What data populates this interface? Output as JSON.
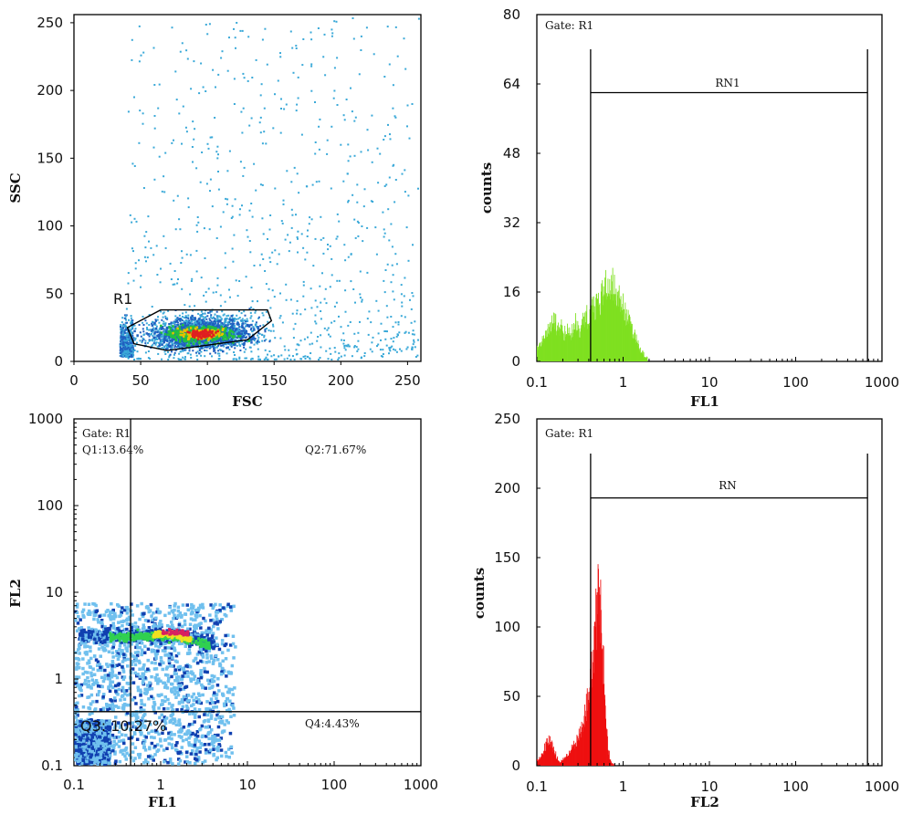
{
  "chart_data": [
    {
      "type": "scatter",
      "id": "fsc-ssc",
      "xlabel": "FSC",
      "ylabel": "SSC",
      "xlim": [
        0,
        260
      ],
      "ylim": [
        0,
        256
      ],
      "xticks": [
        0,
        50,
        100,
        150,
        200,
        250
      ],
      "yticks": [
        0,
        50,
        100,
        150,
        200,
        250
      ],
      "gate": {
        "name": "R1",
        "polygon": [
          [
            45,
            13
          ],
          [
            40,
            25
          ],
          [
            65,
            38
          ],
          [
            145,
            38
          ],
          [
            148,
            30
          ],
          [
            130,
            16
          ],
          [
            70,
            8
          ]
        ]
      },
      "colors": {
        "sparse": "#3aa9d8",
        "medium": "#2060c0",
        "dense": "#22c040",
        "core": "#e8c000",
        "hot": "#e02020"
      }
    },
    {
      "type": "histogram",
      "id": "fl1-hist",
      "gate_label": "Gate: R1",
      "xlabel": "FL1",
      "ylabel": "counts",
      "xscale": "log",
      "xlim": [
        0.1,
        1000
      ],
      "ylim": [
        0,
        80
      ],
      "xticks": [
        "0.1",
        "1",
        "10",
        "100",
        "1000"
      ],
      "yticks": [
        0,
        16,
        32,
        48,
        64,
        80
      ],
      "marker": {
        "name": "RN1",
        "from": 0.42,
        "to": 680,
        "level": 62
      },
      "color": "#7fe020",
      "bins": {
        "log_start": -1,
        "step": 0.02,
        "values": [
          3,
          4,
          4,
          5,
          6,
          6,
          7,
          8,
          9,
          10,
          9,
          8,
          9,
          7,
          8,
          6,
          7,
          8,
          7,
          6,
          7,
          8,
          9,
          8,
          7,
          8,
          9,
          10,
          11,
          10,
          11,
          12,
          13,
          12,
          14,
          15,
          14,
          16,
          15,
          17,
          16,
          18,
          19,
          18,
          17,
          16,
          15,
          16,
          14,
          13,
          12,
          11,
          10,
          9,
          8,
          7,
          6,
          5,
          4,
          3,
          2,
          2,
          1,
          1,
          0,
          0
        ]
      }
    },
    {
      "type": "density",
      "id": "fl1-fl2",
      "gate_label": "Gate: R1",
      "xlabel": "FL1",
      "ylabel": "FL2",
      "xscale": "log",
      "yscale": "log",
      "xlim": [
        0.1,
        1000
      ],
      "ylim": [
        0.1,
        1000
      ],
      "xticks": [
        "0.1",
        "1",
        "10",
        "100",
        "1000"
      ],
      "yticks": [
        "0.1",
        "1",
        "10",
        "100",
        "1000"
      ],
      "quadrant_split": {
        "x": 0.45,
        "y": 0.42
      },
      "quadrants": [
        {
          "name": "Q1",
          "label": "Q1:13.64%"
        },
        {
          "name": "Q2",
          "label": "Q2:71.67%"
        },
        {
          "name": "Q3",
          "label": "Q3: 10.27%"
        },
        {
          "name": "Q4",
          "label": "Q4:4.43%"
        }
      ],
      "colors": {
        "sparse": "#70c0ee",
        "medium": "#1040b0",
        "dense": "#30d050",
        "core": "#f0e020",
        "hot": "#d82060"
      }
    },
    {
      "type": "histogram",
      "id": "fl2-hist",
      "gate_label": "Gate: R1",
      "xlabel": "FL2",
      "ylabel": "counts",
      "xscale": "log",
      "xlim": [
        0.1,
        1000
      ],
      "ylim": [
        0,
        250
      ],
      "xticks": [
        "0.1",
        "1",
        "10",
        "100",
        "1000"
      ],
      "yticks": [
        0,
        50,
        100,
        150,
        200,
        250
      ],
      "marker": {
        "name": "RN",
        "from": 0.42,
        "to": 680,
        "level": 193
      },
      "color": "#ee1010",
      "bins": {
        "log_start": -1,
        "step": 0.02,
        "values": [
          4,
          6,
          8,
          10,
          13,
          16,
          18,
          17,
          15,
          12,
          9,
          6,
          4,
          3,
          4,
          5,
          6,
          8,
          9,
          11,
          13,
          15,
          17,
          19,
          22,
          26,
          30,
          36,
          42,
          50,
          58,
          68,
          80,
          95,
          108,
          118,
          112,
          96,
          70,
          44,
          22,
          10,
          4,
          2,
          1,
          0
        ]
      }
    }
  ]
}
